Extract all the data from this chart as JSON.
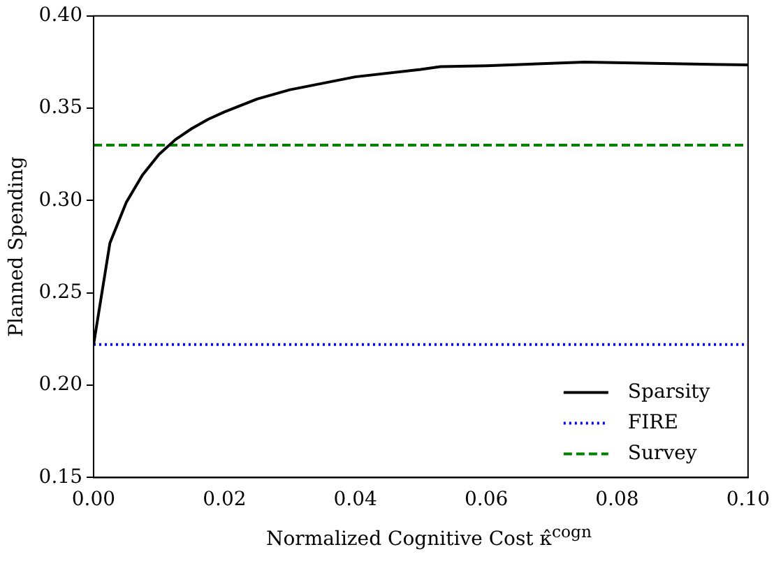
{
  "chart_data": {
    "type": "line",
    "xlabel": "Normalized Cognitive Cost κ̂$^{cogn}$",
    "ylabel": "Planned Spending",
    "xlim": [
      0,
      0.1
    ],
    "xticks": [
      {
        "value": 0,
        "label": "0.00"
      },
      {
        "value": 0.02,
        "label": "0.02"
      },
      {
        "value": 0.04,
        "label": "0.04"
      },
      {
        "value": 0.06,
        "label": "0.06"
      },
      {
        "value": 0.08,
        "label": "0.08"
      },
      {
        "value": 0.1,
        "label": "0.10"
      }
    ],
    "ylim": [
      0.15,
      0.4
    ],
    "yticks": [
      {
        "value": 0.15,
        "label": "0.15"
      },
      {
        "value": 0.2,
        "label": "0.20"
      },
      {
        "value": 0.25,
        "label": "0.25"
      },
      {
        "value": 0.3,
        "label": "0.30"
      },
      {
        "value": 0.35,
        "label": "0.35"
      },
      {
        "value": 0.4,
        "label": "0.40"
      }
    ],
    "grid": false,
    "legend": "bottom right",
    "marker": "none",
    "series": [
      {
        "name": "Sparsity",
        "color": "#000000",
        "line_style": "solid",
        "x": [
          0,
          0.0025,
          0.005,
          0.0075,
          0.01,
          0.0125,
          0.015,
          0.0175,
          0.02,
          0.025,
          0.03,
          0.04,
          0.05,
          0.053,
          0.06,
          0.075,
          0.09,
          0.1
        ],
        "values": [
          0.222,
          0.277,
          0.299,
          0.314,
          0.325,
          0.333,
          0.339,
          0.344,
          0.348,
          0.355,
          0.36,
          0.367,
          0.371,
          0.3725,
          0.373,
          0.375,
          0.374,
          0.3735
        ]
      },
      {
        "name": "FIRE",
        "color": "#0000ff",
        "line_style": "dotted",
        "x": [
          0,
          0.1
        ],
        "values": [
          0.222,
          0.222
        ]
      },
      {
        "name": "Survey",
        "color": "#008000",
        "line_style": "dashed",
        "x": [
          0,
          0.1
        ],
        "values": [
          0.33,
          0.33
        ]
      }
    ]
  }
}
